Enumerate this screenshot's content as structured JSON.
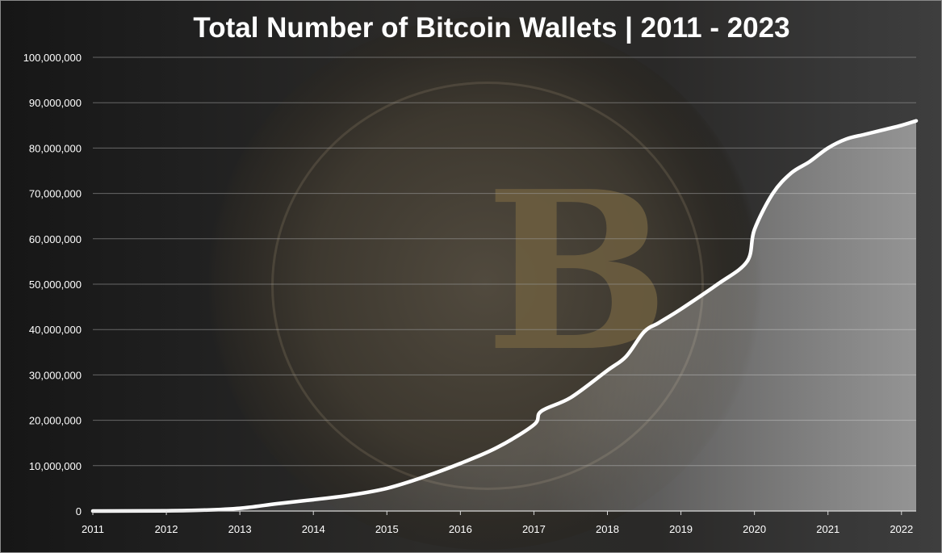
{
  "chart_data": {
    "type": "area",
    "title": "Total Number of Bitcoin Wallets | 2011 - 2023",
    "xlabel": "",
    "ylabel": "",
    "xlim": [
      2011,
      2022.2
    ],
    "ylim": [
      0,
      100000000
    ],
    "grid": true,
    "legend": "none",
    "x_ticks": [
      "2011",
      "2012",
      "2013",
      "2014",
      "2015",
      "2016",
      "2017",
      "2018",
      "2019",
      "2020",
      "2021",
      "2022"
    ],
    "y_ticks": [
      "0",
      "10,000,000",
      "20,000,000",
      "30,000,000",
      "40,000,000",
      "50,000,000",
      "60,000,000",
      "70,000,000",
      "80,000,000",
      "90,000,000",
      "100,000,000"
    ],
    "series": [
      {
        "x": [
          2011,
          2012,
          2012.5,
          2013,
          2013.5,
          2014,
          2014.5,
          2015,
          2015.5,
          2016,
          2016.5,
          2017,
          2017.1,
          2017.5,
          2018,
          2018.25,
          2018.5,
          2018.7,
          2019,
          2019.5,
          2019.9,
          2020,
          2020.25,
          2020.5,
          2020.75,
          2021,
          2021.25,
          2021.5,
          2021.75,
          2022,
          2022.2
        ],
        "values": [
          0,
          50000,
          200000,
          600000,
          1600000,
          2500000,
          3500000,
          5000000,
          7500000,
          10500000,
          14000000,
          19000000,
          22000000,
          25000000,
          31000000,
          34000000,
          39500000,
          41500000,
          44500000,
          50000000,
          55000000,
          62000000,
          70000000,
          74500000,
          77000000,
          80000000,
          82000000,
          83000000,
          84000000,
          85000000,
          86000000
        ]
      }
    ],
    "colors": {
      "line": "#ffffff",
      "fill": "#ffffff",
      "grid": "#9a9a9a",
      "axis": "#d9d9d9",
      "text": "#ffffff"
    }
  }
}
